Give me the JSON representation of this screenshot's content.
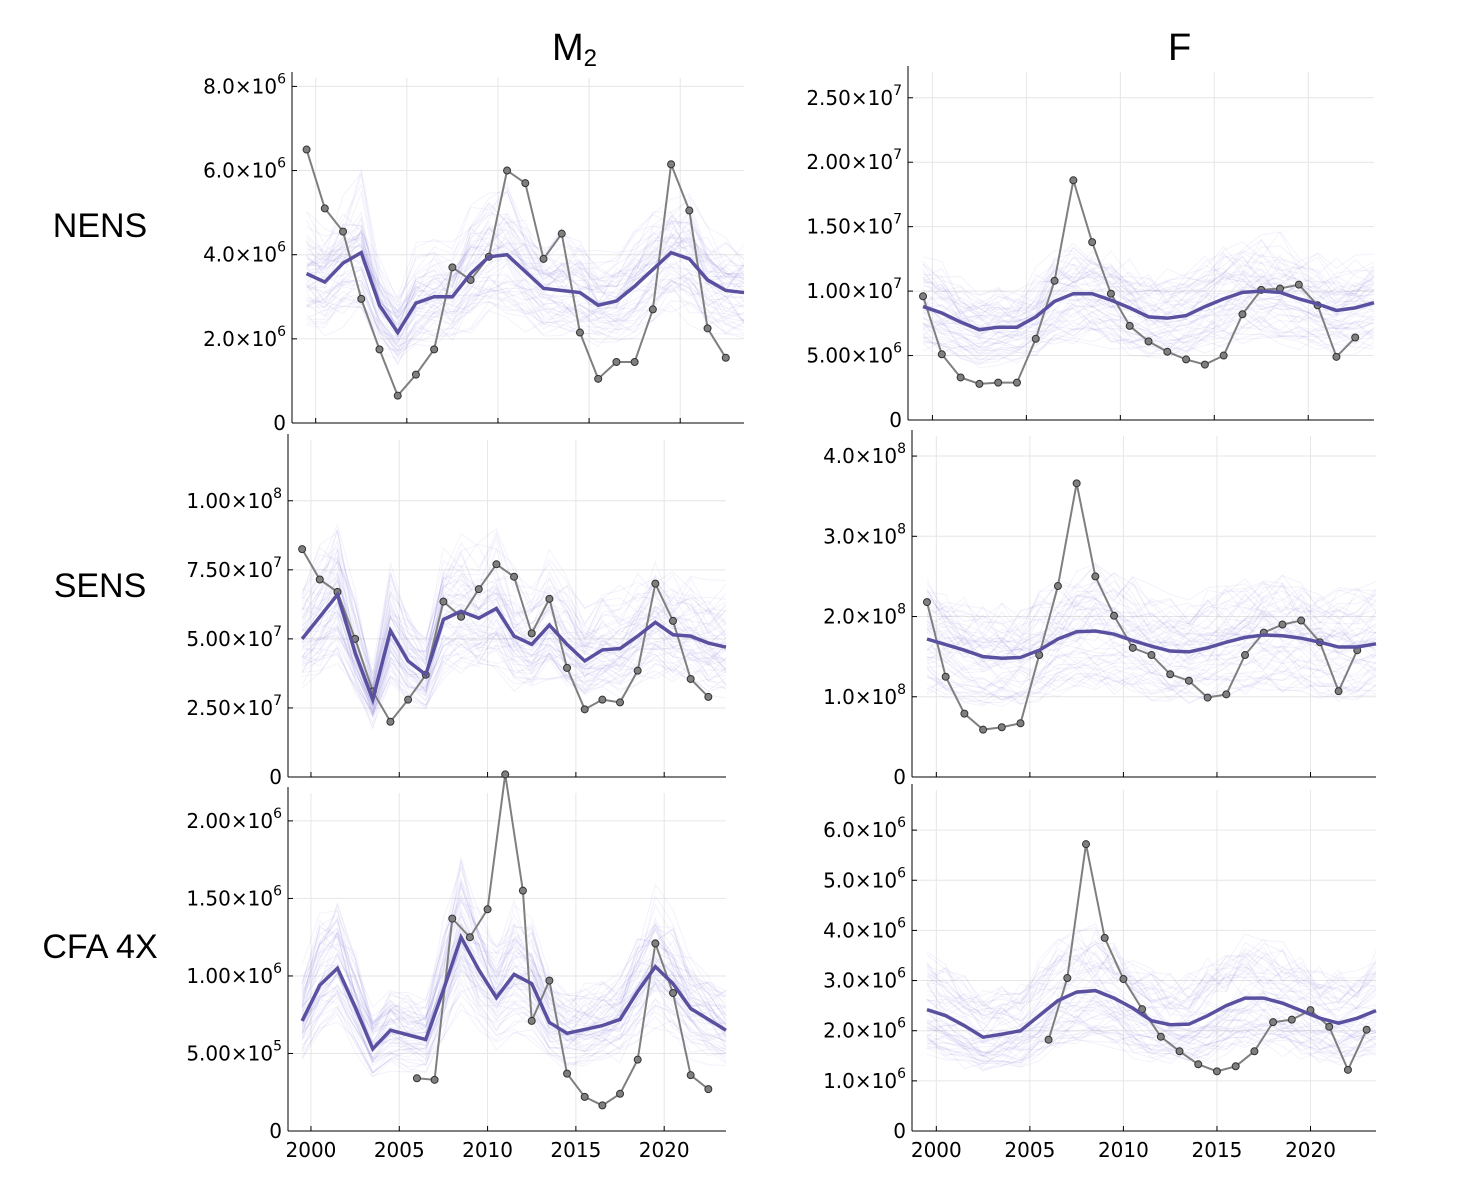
{
  "columns": [
    "M",
    "F"
  ],
  "column_subscripts": [
    "2",
    ""
  ],
  "rows": [
    "NENS",
    "SENS",
    "CFA 4X"
  ],
  "colors": {
    "ensemble": "#6a5acd",
    "mean": "#5a50a0",
    "observed": "#7f7f7f"
  },
  "chart_data": [
    {
      "type": "line",
      "panel": "M2-NENS",
      "ylim": [
        0,
        8200000
      ],
      "yticks": [
        0,
        2000000,
        4000000,
        6000000,
        8000000
      ],
      "ytick_labels": [
        [
          "0",
          ""
        ],
        [
          "2.0×10",
          "6"
        ],
        [
          "4.0×10",
          "6"
        ],
        [
          "6.0×10",
          "6"
        ],
        [
          "8.0×10",
          "6"
        ]
      ],
      "xlim": [
        1998.7,
        2023.5
      ],
      "xticks": [
        2000,
        2005,
        2010,
        2015,
        2020
      ],
      "show_xlabels": false,
      "series": [
        {
          "role": "mean",
          "x": [
            1999.5,
            2000.5,
            2001.5,
            2002.5,
            2003.5,
            2004.5,
            2005.5,
            2006.5,
            2007.5,
            2008.5,
            2009.5,
            2010.5,
            2011.5,
            2012.5,
            2013.5,
            2014.5,
            2015.5,
            2016.5,
            2017.5,
            2018.5,
            2019.5,
            2020.5,
            2021.5,
            2022.5,
            2023.5
          ],
          "values": [
            3550000,
            3350000,
            3800000,
            4050000,
            2800000,
            2150000,
            2850000,
            3000000,
            3000000,
            3550000,
            3950000,
            4000000,
            3600000,
            3200000,
            3150000,
            3100000,
            2800000,
            2900000,
            3250000,
            3650000,
            4050000,
            3900000,
            3400000,
            3150000,
            3100000
          ]
        },
        {
          "role": "observed",
          "x": [
            1999.5,
            2000.5,
            2001.5,
            2002.5,
            2003.5,
            2004.5,
            2005.5,
            2006.5,
            2007.5,
            2008.5,
            2009.5,
            2010.5,
            2011.5,
            2012.5,
            2013.5,
            2014.5,
            2015.5,
            2016.5,
            2017.5,
            2018.5,
            2019.5,
            2020.5,
            2021.5,
            2022.5
          ],
          "values": [
            6500000,
            5100000,
            4550000,
            2950000,
            1750000,
            650000,
            1150000,
            1750000,
            3700000,
            3400000,
            3950000,
            6000000,
            5700000,
            3900000,
            4500000,
            2150000,
            1050000,
            1450000,
            1450000,
            2700000,
            6150000,
            5050000,
            2250000,
            1550000
          ]
        }
      ]
    },
    {
      "type": "line",
      "panel": "F-NENS",
      "ylim": [
        0,
        27000000
      ],
      "yticks": [
        0,
        5000000,
        10000000,
        15000000,
        20000000,
        25000000
      ],
      "ytick_labels": [
        [
          "0",
          ""
        ],
        [
          "5.00×10",
          "6"
        ],
        [
          "1.00×10",
          "7"
        ],
        [
          "1.50×10",
          "7"
        ],
        [
          "2.00×10",
          "7"
        ],
        [
          "2.50×10",
          "7"
        ]
      ],
      "xlim": [
        1998.7,
        2023.5
      ],
      "xticks": [
        2000,
        2005,
        2010,
        2015,
        2020
      ],
      "show_xlabels": false,
      "series": [
        {
          "role": "mean",
          "x": [
            1999.5,
            2000.5,
            2001.5,
            2002.5,
            2003.5,
            2004.5,
            2005.5,
            2006.5,
            2007.5,
            2008.5,
            2009.5,
            2010.5,
            2011.5,
            2012.5,
            2013.5,
            2014.5,
            2015.5,
            2016.5,
            2017.5,
            2018.5,
            2019.5,
            2020.5,
            2021.5,
            2022.5,
            2023.5
          ],
          "values": [
            8800000,
            8300000,
            7600000,
            7000000,
            7200000,
            7200000,
            8000000,
            9200000,
            9800000,
            9800000,
            9300000,
            8700000,
            8000000,
            7900000,
            8100000,
            8800000,
            9400000,
            9900000,
            10000000,
            9900000,
            9400000,
            9000000,
            8500000,
            8700000,
            9100000
          ]
        },
        {
          "role": "observed",
          "x": [
            1999.5,
            2000.5,
            2001.5,
            2002.5,
            2003.5,
            2004.5,
            2005.5,
            2006.5,
            2007.5,
            2008.5,
            2009.5,
            2010.5,
            2011.5,
            2012.5,
            2013.5,
            2014.5,
            2015.5,
            2016.5,
            2017.5,
            2018.5,
            2019.5,
            2020.5,
            2021.5,
            2022.5
          ],
          "values": [
            9600000,
            5100000,
            3300000,
            2800000,
            2900000,
            2900000,
            6300000,
            10800000,
            18600000,
            13800000,
            9800000,
            7300000,
            6100000,
            5300000,
            4700000,
            4300000,
            5000000,
            8200000,
            10100000,
            10200000,
            10500000,
            8900000,
            4900000,
            6400000
          ]
        }
      ]
    },
    {
      "type": "line",
      "panel": "M2-SENS",
      "ylim": [
        0,
        122000000
      ],
      "yticks": [
        0,
        25000000,
        50000000,
        75000000,
        100000000
      ],
      "ytick_labels": [
        [
          "0",
          ""
        ],
        [
          "2.50×10",
          "7"
        ],
        [
          "5.00×10",
          "7"
        ],
        [
          "7.50×10",
          "7"
        ],
        [
          "1.00×10",
          "8"
        ]
      ],
      "xlim": [
        1998.7,
        2023.5
      ],
      "xticks": [
        2000,
        2005,
        2010,
        2015,
        2020
      ],
      "show_xlabels": false,
      "series": [
        {
          "role": "mean",
          "x": [
            1999.5,
            2000.5,
            2001.5,
            2002.5,
            2003.5,
            2004.5,
            2005.5,
            2006.5,
            2007.5,
            2008.5,
            2009.5,
            2010.5,
            2011.5,
            2012.5,
            2013.5,
            2014.5,
            2015.5,
            2016.5,
            2017.5,
            2018.5,
            2019.5,
            2020.5,
            2021.5,
            2022.5,
            2023.5
          ],
          "values": [
            50000000,
            58000000,
            66000000,
            45000000,
            28000000,
            53000000,
            42000000,
            37000000,
            57000000,
            60000000,
            57500000,
            61000000,
            51000000,
            48000000,
            55000000,
            48000000,
            42000000,
            46000000,
            46500000,
            51000000,
            56000000,
            51500000,
            51000000,
            48500000,
            47000000
          ]
        },
        {
          "role": "observed",
          "x": [
            1999.5,
            2000.5,
            2001.5,
            2002.5,
            2003.5,
            2004.5,
            2005.5,
            2006.5,
            2007.5,
            2008.5,
            2009.5,
            2010.5,
            2011.5,
            2012.5,
            2013.5,
            2014.5,
            2015.5,
            2016.5,
            2017.5,
            2018.5,
            2019.5,
            2020.5,
            2021.5,
            2022.5
          ],
          "values": [
            82500000,
            71500000,
            67000000,
            50000000,
            31000000,
            20000000,
            28000000,
            37000000,
            63500000,
            58000000,
            68000000,
            77000000,
            72500000,
            52000000,
            64500000,
            39500000,
            24500000,
            28000000,
            27000000,
            38500000,
            70000000,
            56500000,
            35500000,
            29000000
          ]
        }
      ]
    },
    {
      "type": "line",
      "panel": "F-SENS",
      "ylim": [
        0,
        425000000
      ],
      "yticks": [
        0,
        100000000,
        200000000,
        300000000,
        400000000
      ],
      "ytick_labels": [
        [
          "0",
          ""
        ],
        [
          "1.0×10",
          "8"
        ],
        [
          "2.0×10",
          "8"
        ],
        [
          "3.0×10",
          "8"
        ],
        [
          "4.0×10",
          "8"
        ]
      ],
      "xlim": [
        1998.7,
        2023.5
      ],
      "xticks": [
        2000,
        2005,
        2010,
        2015,
        2020
      ],
      "show_xlabels": false,
      "series": [
        {
          "role": "mean",
          "x": [
            1999.5,
            2000.5,
            2001.5,
            2002.5,
            2003.5,
            2004.5,
            2005.5,
            2006.5,
            2007.5,
            2008.5,
            2009.5,
            2010.5,
            2011.5,
            2012.5,
            2013.5,
            2014.5,
            2015.5,
            2016.5,
            2017.5,
            2018.5,
            2019.5,
            2020.5,
            2021.5,
            2022.5,
            2023.5
          ],
          "values": [
            172000000,
            165000000,
            158000000,
            150000000,
            148000000,
            149000000,
            158000000,
            172000000,
            181000000,
            182000000,
            178000000,
            170000000,
            163000000,
            157000000,
            156000000,
            161000000,
            168000000,
            174000000,
            177000000,
            176000000,
            173000000,
            168000000,
            162000000,
            162000000,
            166000000
          ]
        },
        {
          "role": "observed",
          "x": [
            1999.5,
            2000.5,
            2001.5,
            2002.5,
            2003.5,
            2004.5,
            2005.5,
            2006.5,
            2007.5,
            2008.5,
            2009.5,
            2010.5,
            2011.5,
            2012.5,
            2013.5,
            2014.5,
            2015.5,
            2016.5,
            2017.5,
            2018.5,
            2019.5,
            2020.5,
            2021.5,
            2022.5
          ],
          "values": [
            218000000,
            125000000,
            79000000,
            59000000,
            62000000,
            67000000,
            152000000,
            238000000,
            366000000,
            250000000,
            201000000,
            161000000,
            152000000,
            128000000,
            120000000,
            99000000,
            103000000,
            152000000,
            180000000,
            190000000,
            195000000,
            168000000,
            107000000,
            158000000
          ]
        }
      ]
    },
    {
      "type": "line",
      "panel": "M2-CFA4X",
      "ylim": [
        0,
        2180000
      ],
      "yticks": [
        0,
        500000,
        1000000,
        1500000,
        2000000
      ],
      "ytick_labels": [
        [
          "0",
          ""
        ],
        [
          "5.00×10",
          "5"
        ],
        [
          "1.00×10",
          "6"
        ],
        [
          "1.50×10",
          "6"
        ],
        [
          "2.00×10",
          "6"
        ]
      ],
      "xlim": [
        1998.7,
        2023.5
      ],
      "xticks": [
        2000,
        2005,
        2010,
        2015,
        2020
      ],
      "show_xlabels": true,
      "xtick_labels": [
        "2000",
        "2005",
        "2010",
        "2015",
        "2020"
      ],
      "series": [
        {
          "role": "mean",
          "x": [
            1999.5,
            2000.5,
            2001.5,
            2002.5,
            2003.5,
            2004.5,
            2005.5,
            2006.5,
            2007.5,
            2008.5,
            2009.5,
            2010.5,
            2011.5,
            2012.5,
            2013.5,
            2014.5,
            2015.5,
            2016.5,
            2017.5,
            2018.5,
            2019.5,
            2020.5,
            2021.5,
            2022.5,
            2023.5
          ],
          "values": [
            710000,
            940000,
            1050000,
            800000,
            530000,
            650000,
            620000,
            590000,
            910000,
            1250000,
            1040000,
            860000,
            1010000,
            950000,
            700000,
            630000,
            655000,
            680000,
            720000,
            900000,
            1060000,
            950000,
            790000,
            720000,
            650000
          ]
        },
        {
          "role": "observed",
          "x": [
            2006.0,
            2007.0,
            2008.0,
            2009.0,
            2010.0,
            2011.0,
            2012.0,
            2012.5,
            2013.5,
            2014.5,
            2015.5,
            2016.5,
            2017.5,
            2018.5,
            2019.5,
            2020.5,
            2021.5,
            2022.5
          ],
          "values": [
            340000,
            330000,
            1370000,
            1250000,
            1430000,
            2300000,
            1550000,
            710000,
            970000,
            370000,
            220000,
            165000,
            240000,
            460000,
            1210000,
            890000,
            360000,
            270000
          ]
        }
      ]
    },
    {
      "type": "line",
      "panel": "F-CFA4X",
      "ylim": [
        0,
        6800000
      ],
      "yticks": [
        0,
        1000000,
        2000000,
        3000000,
        4000000,
        5000000,
        6000000
      ],
      "ytick_labels": [
        [
          "0",
          ""
        ],
        [
          "1.0×10",
          "6"
        ],
        [
          "2.0×10",
          "6"
        ],
        [
          "3.0×10",
          "6"
        ],
        [
          "4.0×10",
          "6"
        ],
        [
          "5.0×10",
          "6"
        ],
        [
          "6.0×10",
          "6"
        ]
      ],
      "xlim": [
        1998.7,
        2023.5
      ],
      "xticks": [
        2000,
        2005,
        2010,
        2015,
        2020
      ],
      "show_xlabels": true,
      "xtick_labels": [
        "2000",
        "2005",
        "2010",
        "2015",
        "2020"
      ],
      "series": [
        {
          "role": "mean",
          "x": [
            1999.5,
            2000.5,
            2001.5,
            2002.5,
            2003.5,
            2004.5,
            2005.5,
            2006.5,
            2007.5,
            2008.5,
            2009.5,
            2010.5,
            2011.5,
            2012.5,
            2013.5,
            2014.5,
            2015.5,
            2016.5,
            2017.5,
            2018.5,
            2019.5,
            2020.5,
            2021.5,
            2022.5,
            2023.5
          ],
          "values": [
            2420000,
            2300000,
            2100000,
            1870000,
            1930000,
            2000000,
            2300000,
            2600000,
            2770000,
            2800000,
            2650000,
            2450000,
            2200000,
            2120000,
            2130000,
            2300000,
            2500000,
            2650000,
            2650000,
            2550000,
            2400000,
            2250000,
            2150000,
            2250000,
            2400000
          ]
        },
        {
          "role": "observed",
          "x": [
            2006.0,
            2007.0,
            2008.0,
            2009.0,
            2010.0,
            2011.0,
            2012.0,
            2013.0,
            2014.0,
            2015.0,
            2016.0,
            2017.0,
            2018.0,
            2019.0,
            2020.0,
            2021.0,
            2022.0,
            2023.0
          ],
          "values": [
            1820000,
            3050000,
            5720000,
            3850000,
            3030000,
            2430000,
            1880000,
            1590000,
            1330000,
            1190000,
            1290000,
            1590000,
            2170000,
            2220000,
            2410000,
            2080000,
            1220000,
            2020000
          ]
        }
      ]
    }
  ]
}
